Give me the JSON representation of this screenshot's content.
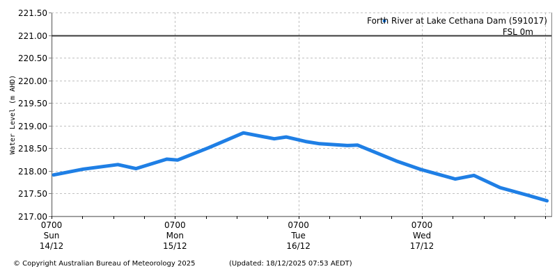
{
  "chart_data": {
    "type": "line",
    "title": "",
    "xlabel": "",
    "ylabel": "Water Level (m AHD)",
    "ylim": [
      217.0,
      221.5
    ],
    "yticks": [
      "221.50",
      "221.00",
      "220.50",
      "220.00",
      "219.50",
      "219.00",
      "218.50",
      "218.00",
      "217.50",
      "217.00"
    ],
    "ytick_values": [
      221.5,
      221.0,
      220.5,
      220.0,
      219.5,
      219.0,
      218.5,
      218.0,
      217.5,
      217.0
    ],
    "xticks": [
      {
        "time": "0700",
        "day": "Sun",
        "date": "14/12",
        "hours": 0
      },
      {
        "time": "0700",
        "day": "Mon",
        "date": "15/12",
        "hours": 24
      },
      {
        "time": "0700",
        "day": "Tue",
        "date": "16/12",
        "hours": 48
      },
      {
        "time": "0700",
        "day": "Wed",
        "date": "17/12",
        "hours": 72
      }
    ],
    "xlim_hours": [
      0,
      96.8
    ],
    "x_unit": "hours since 0700 Sun 14/12",
    "grid": true,
    "legend_position": "top-right",
    "series": [
      {
        "name": "Forth River at Lake Cethana Dam (591017)",
        "color": "#1f7fe5",
        "x_hours": [
          0.4,
          6.2,
          12.9,
          16.4,
          22.4,
          24.5,
          30.5,
          37.3,
          43.3,
          45.6,
          49.4,
          52.1,
          57.5,
          59.5,
          67.0,
          71.8,
          78.5,
          82.1,
          87.2,
          92.6,
          96.3
        ],
        "values": [
          217.91,
          218.04,
          218.14,
          218.05,
          218.26,
          218.24,
          218.51,
          218.84,
          218.71,
          218.75,
          218.65,
          218.6,
          218.56,
          218.57,
          218.22,
          218.03,
          217.82,
          217.9,
          217.63,
          217.46,
          217.34
        ]
      }
    ],
    "reference_lines": [
      {
        "label": "FSL 0m",
        "value": 221.0,
        "color": "#3a3a3a"
      }
    ]
  },
  "legend": {
    "series_label": "Forth River at Lake Cethana Dam (591017)",
    "fsl_label": "FSL 0m"
  },
  "footer": {
    "copyright": "© Copyright Australian Bureau of Meteorology 2025",
    "updated": "(Updated: 18/12/2025 07:53 AEDT)"
  },
  "colors": {
    "series": "#1f7fe5",
    "fsl_line": "#3a3a3a",
    "grid": "#c0c0c0",
    "axis": "#808080"
  }
}
